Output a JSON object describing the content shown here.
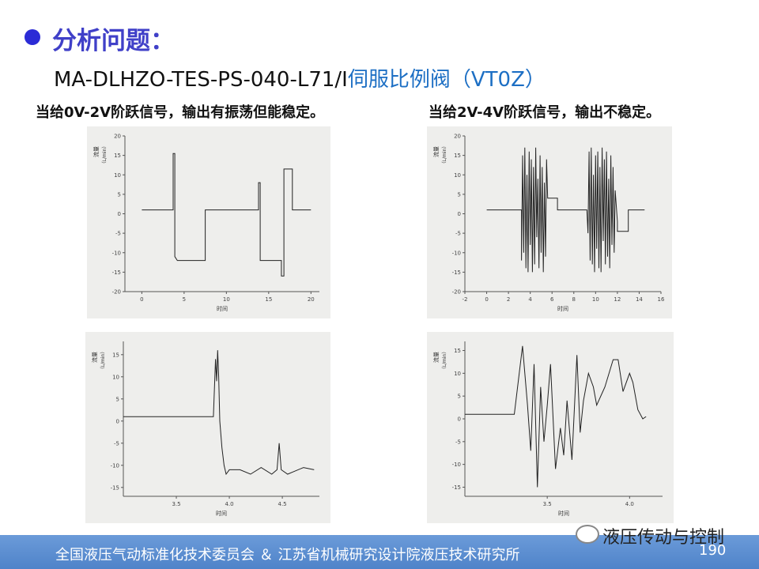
{
  "header": {
    "title": "分析问题：",
    "subtitle_code": "MA-DLHZO-TES-PS-040-L71/I",
    "subtitle_name": "伺服比例阀（VT0Z）"
  },
  "captions": [
    "当给0V-2V阶跃信号，输出有振荡但能稳定。",
    "当给2V-4V阶跃信号，输出不稳定。"
  ],
  "plots": [
    {
      "type": "line",
      "y_label": "流量",
      "y_unit": "（L/min）",
      "x_label": "时间",
      "xlim": [
        -2,
        21
      ],
      "ylim": [
        -20,
        20
      ],
      "xticks": [
        0,
        5,
        10,
        15,
        20
      ],
      "yticks": [
        -20,
        -15,
        -10,
        -5,
        0,
        5,
        10,
        15,
        20
      ],
      "x": [
        0,
        3.7,
        3.7,
        3.9,
        3.9,
        4.2,
        7.5,
        7.5,
        13.8,
        13.8,
        14,
        14,
        16.5,
        16.5,
        16.8,
        16.8,
        17.8,
        17.8,
        20
      ],
      "y": [
        1,
        1,
        15.5,
        15.5,
        -11,
        -12,
        -12,
        1,
        1,
        8,
        8,
        -12,
        -12,
        -16,
        -16,
        11.5,
        11.5,
        1,
        1
      ]
    },
    {
      "type": "line",
      "y_label": "流量",
      "y_unit": "（L/min）",
      "x_label": "时间",
      "xlim": [
        -2,
        16
      ],
      "ylim": [
        -20,
        20
      ],
      "xticks": [
        -2,
        0,
        2,
        4,
        6,
        8,
        10,
        12,
        14,
        16
      ],
      "yticks": [
        -20,
        -15,
        -10,
        -5,
        0,
        5,
        10,
        15,
        20
      ],
      "x": [
        0,
        3.2,
        3.2,
        3.3,
        3.4,
        3.5,
        3.6,
        3.7,
        3.8,
        3.9,
        4.0,
        4.1,
        4.2,
        4.3,
        4.4,
        4.5,
        4.6,
        4.7,
        4.8,
        4.9,
        5.0,
        5.1,
        5.2,
        5.3,
        5.4,
        5.5,
        5.6,
        5.8,
        6.2,
        6.5,
        6.5,
        9.0,
        9.2,
        9.3,
        9.4,
        9.5,
        9.6,
        9.7,
        9.8,
        9.9,
        10.0,
        10.1,
        10.2,
        10.3,
        10.4,
        10.5,
        10.6,
        10.7,
        10.8,
        10.9,
        11.0,
        11.1,
        11.2,
        11.3,
        11.4,
        11.5,
        11.6,
        11.7,
        11.8,
        12.0,
        12.0,
        13.0,
        13.0,
        14.5
      ],
      "y": [
        1,
        1,
        -12,
        15,
        -10,
        17,
        -14,
        10,
        -15,
        16,
        -8,
        14,
        -15,
        12,
        -13,
        17,
        -6,
        9,
        -14,
        15,
        -10,
        12,
        -15,
        8,
        -11,
        14,
        4,
        4,
        4,
        4,
        1,
        1,
        1,
        -5,
        16,
        -12,
        17,
        -13,
        10,
        -15,
        15,
        -9,
        16,
        -14,
        12,
        -15,
        17,
        -7,
        14,
        -13,
        16,
        -11,
        9,
        -14,
        15,
        -8,
        12,
        -10,
        6,
        -2,
        -4.5,
        -4.5,
        1,
        1
      ]
    },
    {
      "type": "line",
      "y_label": "流量",
      "y_unit": "（L/min）",
      "x_label": "时间",
      "xlim": [
        3.0,
        4.85
      ],
      "ylim": [
        -17,
        18
      ],
      "xticks": [
        3.5,
        {
          "value": 4,
          "label": "4.0"
        },
        4.5
      ],
      "yticks": [
        -15,
        -10,
        -5,
        0,
        5,
        10,
        15
      ],
      "x": [
        3.0,
        3.85,
        3.87,
        3.88,
        3.89,
        3.9,
        3.91,
        3.93,
        3.95,
        3.97,
        4.0,
        4.1,
        4.2,
        4.3,
        4.4,
        4.45,
        4.47,
        4.49,
        4.55,
        4.6,
        4.7,
        4.8
      ],
      "y": [
        1,
        1,
        14,
        9,
        16,
        10,
        0,
        -6,
        -10,
        -12,
        -11,
        -11,
        -12,
        -10.5,
        -12,
        -11,
        -5,
        -11,
        -12,
        -11.5,
        -10.5,
        -11
      ]
    },
    {
      "type": "line",
      "y_label": "流量",
      "y_unit": "（L/min）",
      "x_label": "时间",
      "xlim": [
        3.0,
        4.2
      ],
      "ylim": [
        -17,
        17
      ],
      "xticks": [
        3.5,
        {
          "value": 4,
          "label": "4.0"
        }
      ],
      "yticks": [
        -15,
        -10,
        -5,
        0,
        5,
        10,
        15
      ],
      "x": [
        3.0,
        3.3,
        3.35,
        3.38,
        3.4,
        3.42,
        3.44,
        3.46,
        3.48,
        3.5,
        3.52,
        3.55,
        3.58,
        3.6,
        3.62,
        3.65,
        3.68,
        3.7,
        3.72,
        3.75,
        3.78,
        3.8,
        3.85,
        3.9,
        3.93,
        3.96,
        4.0,
        4.02,
        4.05,
        4.08,
        4.1
      ],
      "y": [
        1,
        1,
        16,
        3,
        -7,
        12,
        -15,
        7,
        -5,
        3,
        12,
        -11,
        -2,
        -8,
        4,
        -9,
        14,
        -3,
        4,
        10,
        7,
        3,
        7,
        13,
        13,
        6,
        10,
        8,
        2,
        0,
        0.5
      ]
    }
  ],
  "footer": {
    "organizations": "全国液压气动标准化技术委员会 ＆ 江苏省机械研究设计院液压技术研究所",
    "brand": "液压传动与控制",
    "page_number": "190"
  }
}
